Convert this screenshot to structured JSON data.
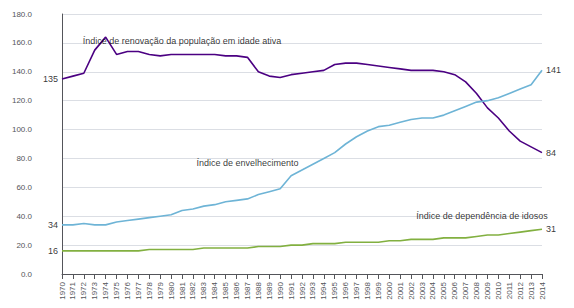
{
  "chart_data": {
    "type": "line",
    "x": [
      1970,
      1971,
      1972,
      1973,
      1974,
      1975,
      1976,
      1977,
      1978,
      1979,
      1980,
      1981,
      1982,
      1983,
      1984,
      1985,
      1986,
      1987,
      1988,
      1989,
      1990,
      1991,
      1992,
      1993,
      1994,
      1995,
      1996,
      1997,
      1998,
      1999,
      2000,
      2001,
      2002,
      2003,
      2004,
      2005,
      2006,
      2007,
      2008,
      2009,
      2010,
      2011,
      2012,
      2013,
      2014
    ],
    "xlim": [
      1970,
      2014
    ],
    "xticks": [
      1970,
      1971,
      1972,
      1973,
      1974,
      1975,
      1976,
      1977,
      1978,
      1979,
      1980,
      1981,
      1982,
      1983,
      1984,
      1985,
      1986,
      1987,
      1988,
      1989,
      1990,
      1991,
      1992,
      1993,
      1994,
      1995,
      1996,
      1997,
      1998,
      1999,
      2000,
      2001,
      2002,
      2003,
      2004,
      2005,
      2006,
      2007,
      2008,
      2009,
      2010,
      2011,
      2012,
      2013,
      2014
    ],
    "ylim": [
      0,
      180
    ],
    "yticks": [
      {
        "value": 0,
        "label": "0.0"
      },
      {
        "value": 20,
        "label": "20.0"
      },
      {
        "value": 40,
        "label": "40.0"
      },
      {
        "value": 60,
        "label": "60.0"
      },
      {
        "value": 80,
        "label": "80.0"
      },
      {
        "value": 100,
        "label": "100.0"
      },
      {
        "value": 120,
        "label": "120.0"
      },
      {
        "value": 140,
        "label": "140.0"
      },
      {
        "value": 160,
        "label": "160.0"
      },
      {
        "value": 180,
        "label": "180.0"
      }
    ],
    "grid": true,
    "series": [
      {
        "name": "Índice de renovação da população em idade ativa",
        "color": "#4B0082",
        "values": [
          135,
          137,
          139,
          155,
          164,
          152,
          154,
          154,
          152,
          151,
          152,
          152,
          152,
          152,
          152,
          151,
          151,
          150,
          140,
          137,
          136,
          138,
          139,
          140,
          141,
          145,
          146,
          146,
          145,
          144,
          143,
          142,
          141,
          141,
          141,
          140,
          138,
          133,
          125,
          115,
          108,
          99,
          92,
          88,
          84
        ]
      },
      {
        "name": "Índice de envelhecimento",
        "color": "#6EB4D6",
        "values": [
          34,
          34,
          35,
          34,
          34,
          36,
          37,
          38,
          39,
          40,
          41,
          44,
          45,
          47,
          48,
          50,
          51,
          52,
          55,
          57,
          59,
          68,
          72,
          76,
          80,
          84,
          90,
          95,
          99,
          102,
          103,
          105,
          107,
          108,
          108,
          110,
          113,
          116,
          119,
          120,
          122,
          125,
          128,
          131,
          141
        ]
      },
      {
        "name": "Índice de dependência de idosos",
        "color": "#82B040",
        "values": [
          16,
          16,
          16,
          16,
          16,
          16,
          16,
          16,
          17,
          17,
          17,
          17,
          17,
          18,
          18,
          18,
          18,
          18,
          19,
          19,
          19,
          20,
          20,
          21,
          21,
          21,
          22,
          22,
          22,
          22,
          23,
          23,
          24,
          24,
          24,
          25,
          25,
          25,
          26,
          27,
          27,
          28,
          29,
          30,
          31
        ]
      }
    ],
    "annotations": [
      {
        "text": "135",
        "x": 1970,
        "y": 135
      },
      {
        "text": "34",
        "x": 1970,
        "y": 34
      },
      {
        "text": "16",
        "x": 1970,
        "y": 16
      },
      {
        "text": "141",
        "x": 2014,
        "y": 141
      },
      {
        "text": "84",
        "x": 2014,
        "y": 84
      },
      {
        "text": "31",
        "x": 2014,
        "y": 31
      },
      {
        "text": "Índice de renovação da população em idade ativa",
        "x": 1981,
        "y": 158
      },
      {
        "text": "Índice de envelhecimento",
        "x": 1987,
        "y": 74
      },
      {
        "text": "Índice de dependência de idosos",
        "x": 2008.5,
        "y": 37
      }
    ]
  }
}
